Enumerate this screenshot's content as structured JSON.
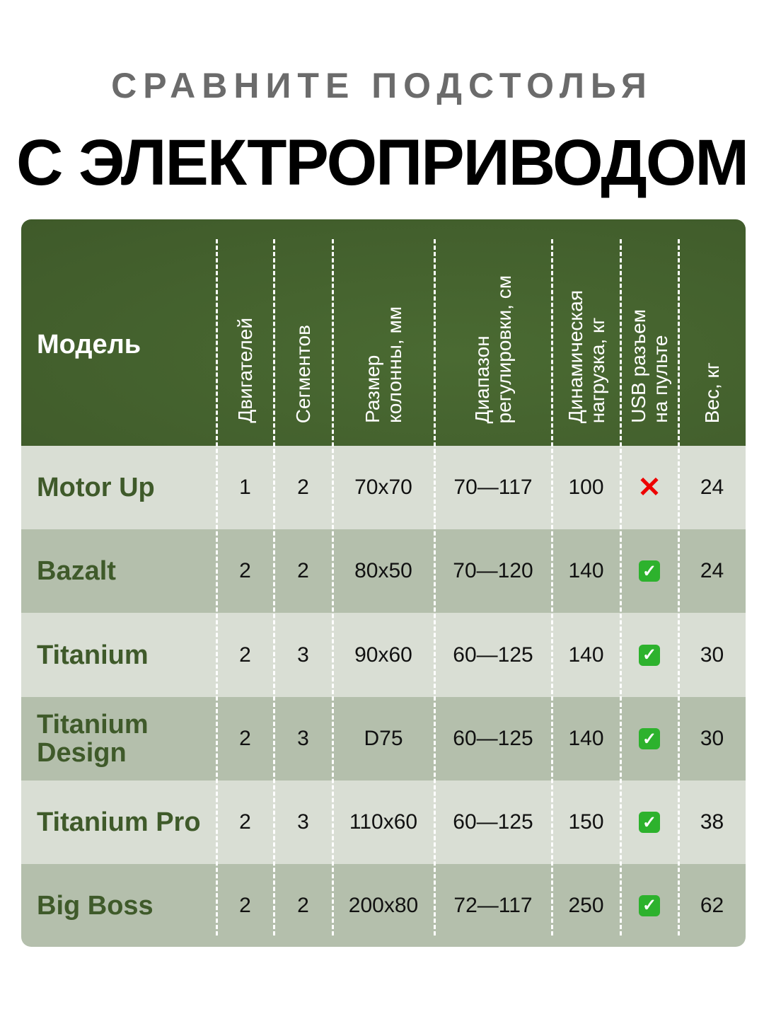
{
  "subtitle": "СРАВНИТЕ ПОДСТОЛЬЯ",
  "title": "С ЭЛЕКТРОПРИВОДОМ",
  "headers": [
    "Модель",
    "Двигателей",
    "Сегментов",
    "Размер\nколонны, мм",
    "Диапазон\nрегулировки, см",
    "Динамическая\nнагрузка, кг",
    "USB разъем\nна пульте",
    "Вес, кг"
  ],
  "colors": {
    "header_bg": "#3f5a2a",
    "row_light": "#d9ded4",
    "row_dark": "#b4bfac",
    "check": "#2db22d",
    "cross": "#ee0000"
  },
  "rows": [
    {
      "model": "Motor Up",
      "motors": "1",
      "segments": "2",
      "column": "70x70",
      "range": "70—117",
      "load": "100",
      "usb": "cross-icon",
      "weight": "24"
    },
    {
      "model": "Bazalt",
      "motors": "2",
      "segments": "2",
      "column": "80x50",
      "range": "70—120",
      "load": "140",
      "usb": "check-icon",
      "weight": "24"
    },
    {
      "model": "Titanium",
      "motors": "2",
      "segments": "3",
      "column": "90x60",
      "range": "60—125",
      "load": "140",
      "usb": "check-icon",
      "weight": "30"
    },
    {
      "model": "Titanium Design",
      "motors": "2",
      "segments": "3",
      "column": "D75",
      "range": "60—125",
      "load": "140",
      "usb": "check-icon",
      "weight": "30"
    },
    {
      "model": "Titanium Pro",
      "motors": "2",
      "segments": "3",
      "column": "110x60",
      "range": "60—125",
      "load": "150",
      "usb": "check-icon",
      "weight": "38"
    },
    {
      "model": "Big Boss",
      "motors": "2",
      "segments": "2",
      "column": "200x80",
      "range": "72—117",
      "load": "250",
      "usb": "check-icon",
      "weight": "62"
    }
  ]
}
